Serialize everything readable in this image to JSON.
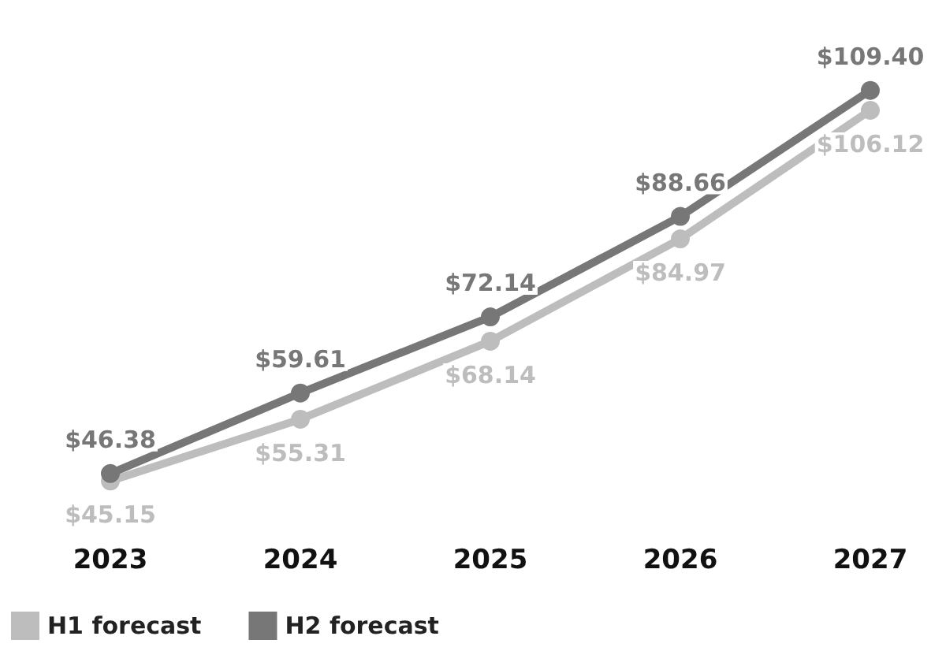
{
  "chart_data": {
    "type": "line",
    "categories": [
      "2023",
      "2024",
      "2025",
      "2026",
      "2027"
    ],
    "series": [
      {
        "name": "H1 forecast",
        "color": "#bdbdbd",
        "values": [
          45.15,
          55.31,
          68.14,
          84.97,
          106.12
        ],
        "value_labels": [
          "$45.15",
          "$55.31",
          "$68.14",
          "$84.97",
          "$106.12"
        ]
      },
      {
        "name": "H2 forecast",
        "color": "#777777",
        "values": [
          46.38,
          59.61,
          72.14,
          88.66,
          109.4
        ],
        "value_labels": [
          "$46.38",
          "$59.61",
          "$72.14",
          "$88.66",
          "$109.40"
        ]
      }
    ],
    "marker": "circle",
    "grid": false,
    "legend": "bottom left",
    "tick_labels": "x"
  }
}
